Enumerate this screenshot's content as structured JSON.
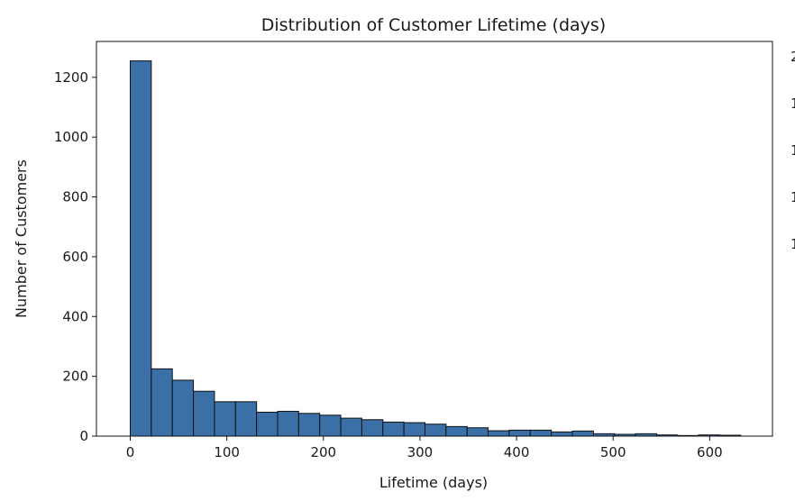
{
  "chart_data": {
    "type": "bar",
    "title": "Distribution of Customer Lifetime (days)",
    "xlabel": "Lifetime (days)",
    "ylabel": "Number of Customers",
    "bin_edges": [
      0,
      21.8,
      43.6,
      65.4,
      87.2,
      109,
      130.8,
      152.6,
      174.4,
      196.2,
      218,
      239.8,
      261.6,
      283.4,
      305.2,
      327,
      348.8,
      370.6,
      392.4,
      414.2,
      436,
      457.8,
      479.6,
      501.4,
      523.2,
      545,
      566.8,
      588.6,
      610.4,
      632.2
    ],
    "values": [
      1255,
      225,
      187,
      150,
      115,
      115,
      80,
      83,
      76,
      70,
      60,
      55,
      47,
      45,
      40,
      32,
      28,
      18,
      20,
      20,
      14,
      17,
      8,
      6,
      8,
      4,
      2,
      4,
      3
    ],
    "xlim": [
      -35,
      665
    ],
    "ylim": [
      0,
      1320
    ],
    "xticks": [
      0,
      100,
      200,
      300,
      400,
      500,
      600
    ],
    "yticks": [
      0,
      200,
      400,
      600,
      800,
      1000,
      1200
    ],
    "bar_color": "#3a6fa8",
    "edge_color": "#111111",
    "grid": false,
    "right_clipped_tick_fragments": [
      "2",
      "1",
      "1",
      "1",
      "1"
    ]
  }
}
